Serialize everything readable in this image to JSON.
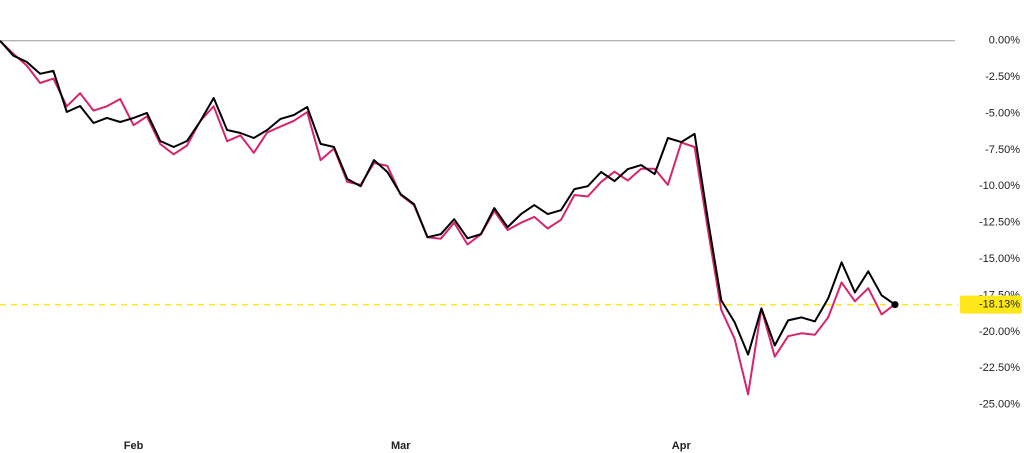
{
  "chart_data": {
    "type": "line",
    "categories": [
      null,
      null,
      null,
      null,
      null,
      null,
      null,
      null,
      null,
      null,
      "Feb",
      null,
      null,
      null,
      null,
      null,
      null,
      null,
      null,
      null,
      null,
      null,
      null,
      null,
      null,
      null,
      null,
      null,
      null,
      null,
      "Mar",
      null,
      null,
      null,
      null,
      null,
      null,
      null,
      null,
      null,
      null,
      null,
      null,
      null,
      null,
      null,
      null,
      null,
      null,
      null,
      null,
      "Apr",
      null,
      null,
      null,
      null,
      null,
      null,
      null,
      null,
      null,
      null,
      null,
      null,
      null,
      null,
      null,
      null
    ],
    "series": [
      {
        "color": "#d6246e",
        "values": [
          0,
          -0.9,
          -1.7,
          -2.9,
          -2.6,
          -4.5,
          -3.6,
          -4.8,
          -4.5,
          -4.0,
          -5.8,
          -5.2,
          -7.1,
          -7.8,
          -7.2,
          -5.5,
          -4.5,
          -6.9,
          -6.5,
          -7.7,
          -6.3,
          -5.9,
          -5.5,
          -4.9,
          -8.2,
          -7.4,
          -9.7,
          -9.9,
          -8.4,
          -8.6,
          -10.6,
          -11.3,
          -13.5,
          -13.6,
          -12.5,
          -14.0,
          -13.3,
          -11.7,
          -13.0,
          -12.5,
          -12.1,
          -12.9,
          -12.3,
          -10.6,
          -10.7,
          -9.7,
          -9.0,
          -9.6,
          -8.8,
          -8.8,
          -9.9,
          -7.0,
          -7.3,
          -13.0,
          -18.5,
          -20.5,
          -24.3,
          -18.4,
          -21.7,
          -20.3,
          -20.1,
          -20.2,
          -19.0,
          -16.6,
          -17.9,
          -17.0,
          -18.8,
          -18.1
        ]
      },
      {
        "color": "#000000",
        "values": [
          0,
          -1.03,
          -1.45,
          -2.27,
          -2.07,
          -4.89,
          -4.48,
          -5.65,
          -5.3,
          -5.58,
          -5.3,
          -4.96,
          -6.89,
          -7.3,
          -6.89,
          -5.51,
          -3.93,
          -6.13,
          -6.34,
          -6.68,
          -6.13,
          -5.37,
          -5.1,
          -4.55,
          -7.09,
          -7.3,
          -9.5,
          -9.99,
          -8.2,
          -9.02,
          -10.54,
          -11.23,
          -13.5,
          -13.29,
          -12.26,
          -13.57,
          -13.29,
          -11.5,
          -12.81,
          -11.91,
          -11.29,
          -11.91,
          -11.64,
          -10.19,
          -9.99,
          -9.02,
          -9.64,
          -8.82,
          -8.54,
          -9.16,
          -6.68,
          -6.96,
          -6.4,
          -12.33,
          -17.84,
          -19.35,
          -21.56,
          -18.39,
          -20.94,
          -19.21,
          -19.01,
          -19.28,
          -17.7,
          -15.22,
          -17.29,
          -15.84,
          -17.49,
          -18.13
        ]
      }
    ],
    "last_value": {
      "value": -18.13,
      "label": "-18.13%",
      "color": "#ffe81a"
    },
    "ylim": [
      -26.4,
      2.8
    ],
    "yticks": [
      {
        "value": 0,
        "label": "0.00%"
      },
      {
        "value": -2.5,
        "label": "-2.50%"
      },
      {
        "value": -5,
        "label": "-5.00%"
      },
      {
        "value": -7.5,
        "label": "-7.50%"
      },
      {
        "value": -10,
        "label": "-10.00%"
      },
      {
        "value": -12.5,
        "label": "-12.50%"
      },
      {
        "value": -15,
        "label": "-15.00%"
      },
      {
        "value": -17.5,
        "label": "-17.50%"
      },
      {
        "value": -20,
        "label": "-20.00%"
      },
      {
        "value": -22.5,
        "label": "-22.50%"
      },
      {
        "value": -25,
        "label": "-25.00%"
      }
    ],
    "zero_line": true
  }
}
